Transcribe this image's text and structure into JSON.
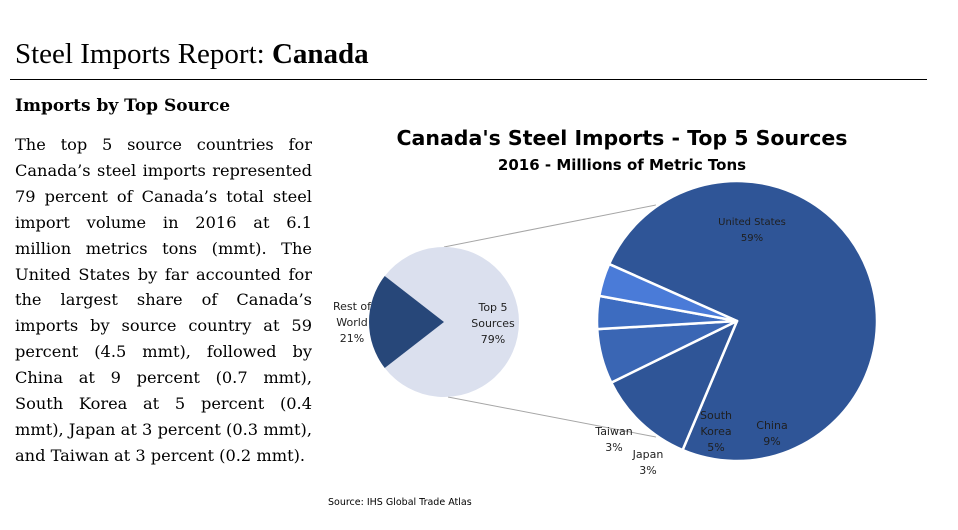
{
  "header": {
    "title_prefix": "Steel Imports Report: ",
    "title_country": "Canada"
  },
  "section": {
    "heading": "Imports by Top Source",
    "paragraph": "The top 5 source countries for Canada’s steel imports represented 79 percent of Canada’s total steel import volume in  2016 at 6.1 million metrics tons (mmt).  The United States by far accounted for the largest share of Canada’s imports by source country at 59 percent (4.5 mmt), followed by China at 9 percent (0.7 mmt), South Korea at 5 percent (0.4 mmt), Japan at 3 percent (0.3 mmt), and Taiwan at 3 percent (0.2 mmt)."
  },
  "source_note": "Source: IHS Global Trade Atlas",
  "chart_data": {
    "type": "pie",
    "title": "Canada's Steel Imports - Top 5 Sources",
    "subtitle": "2016 - Millions of Metric Tons",
    "overview": {
      "slices": [
        {
          "label": "Top 5 Sources",
          "value": 79,
          "display": "79%",
          "color": "#dbe0ee"
        },
        {
          "label": "Rest of World",
          "value": 21,
          "display": "21%",
          "color": "#274779"
        }
      ]
    },
    "detail": {
      "parent": "Top 5 Sources",
      "slices": [
        {
          "label": "United States",
          "value": 59,
          "display": "59%",
          "color": "#2f5597"
        },
        {
          "label": "China",
          "value": 9,
          "display": "9%",
          "color": "#2f5597"
        },
        {
          "label": "South Korea",
          "value": 5,
          "display": "5%",
          "color": "#3a66b4"
        },
        {
          "label": "Japan",
          "value": 3,
          "display": "3%",
          "color": "#3d6cc0"
        },
        {
          "label": "Taiwan",
          "value": 3,
          "display": "3%",
          "color": "#4a7bd8"
        }
      ]
    },
    "connector_color": "#a6a6a6",
    "label_color": "#1f1f1f"
  }
}
